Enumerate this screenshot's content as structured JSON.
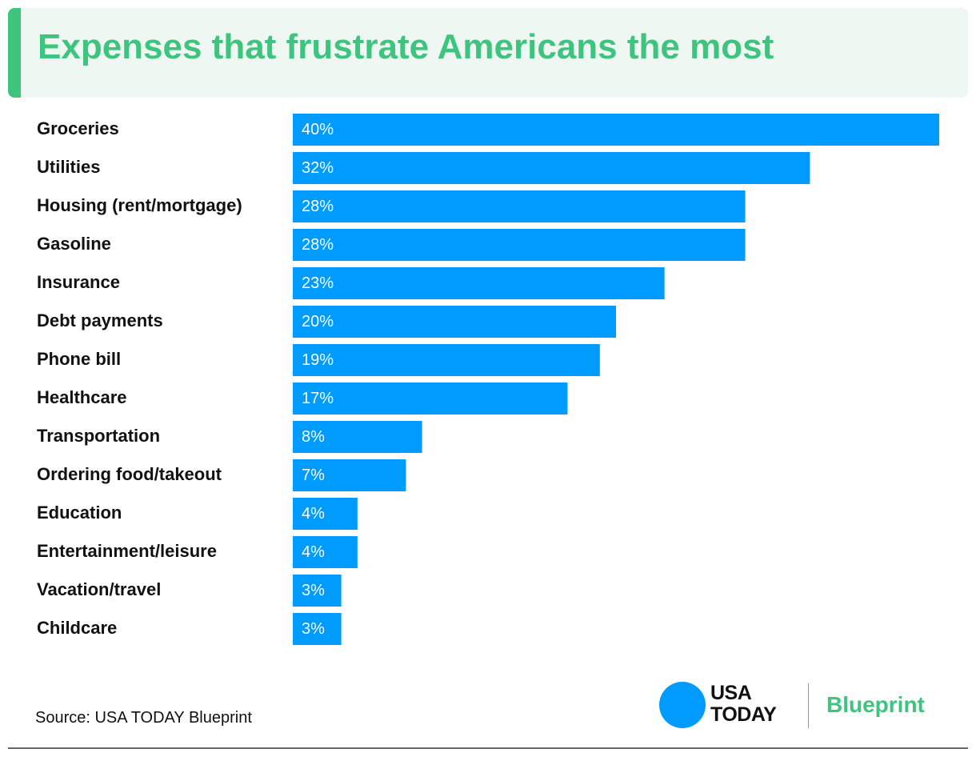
{
  "header": {
    "title": "Expenses that frustrate Americans the most"
  },
  "chart_data": {
    "type": "bar",
    "orientation": "horizontal",
    "title": "Expenses that frustrate Americans the most",
    "categories": [
      "Groceries",
      "Utilities",
      "Housing (rent/mortgage)",
      "Gasoline",
      "Insurance",
      "Debt payments",
      "Phone bill",
      "Healthcare",
      "Transportation",
      "Ordering food/takeout",
      "Education",
      "Entertainment/leisure",
      "Vacation/travel",
      "Childcare"
    ],
    "values": [
      40,
      32,
      28,
      28,
      23,
      20,
      19,
      17,
      8,
      7,
      4,
      4,
      3,
      3
    ],
    "value_labels": [
      "40%",
      "32%",
      "28%",
      "28%",
      "23%",
      "20%",
      "19%",
      "17%",
      "8%",
      "7%",
      "4%",
      "4%",
      "3%",
      "3%"
    ],
    "unit": "%",
    "xlim": [
      0,
      40
    ],
    "grid": false,
    "legend": "none",
    "bar_color": "#009bff"
  },
  "footer": {
    "source": "Source: USA TODAY Blueprint",
    "logo_line1": "USA",
    "logo_line2": "TODAY",
    "brand": "Blueprint"
  },
  "colors": {
    "accent": "#3dc47e",
    "bar": "#009bff",
    "header_bg": "#eef7f1"
  }
}
